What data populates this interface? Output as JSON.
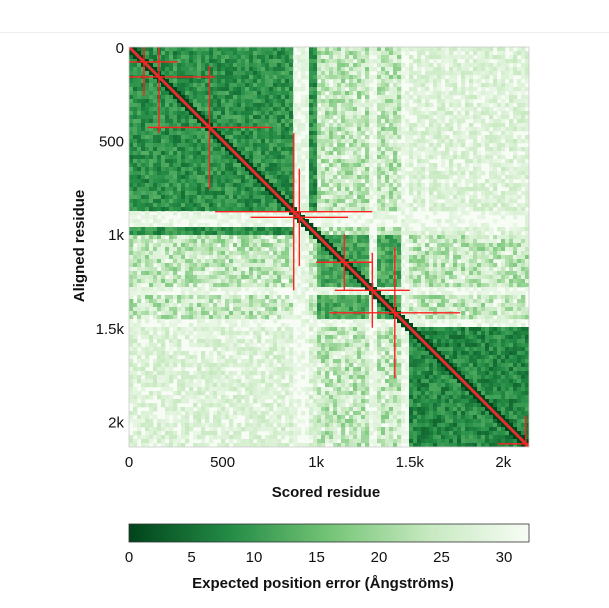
{
  "chart_data": {
    "type": "heatmap",
    "title": "",
    "xlabel": "Scored residue",
    "ylabel": "Aligned residue",
    "x_range": [
      0,
      2137
    ],
    "y_range": [
      0,
      2137
    ],
    "x_ticks": [
      {
        "value": 0,
        "label": "0"
      },
      {
        "value": 500,
        "label": "500"
      },
      {
        "value": 1000,
        "label": "1k"
      },
      {
        "value": 1500,
        "label": "1.5k"
      },
      {
        "value": 2000,
        "label": "2k"
      }
    ],
    "y_ticks": [
      {
        "value": 0,
        "label": "0"
      },
      {
        "value": 500,
        "label": "500"
      },
      {
        "value": 1000,
        "label": "1k"
      },
      {
        "value": 1500,
        "label": "1.5k"
      },
      {
        "value": 2000,
        "label": "2k"
      }
    ],
    "colorscale": {
      "title": "Expected position error (Ångströms)",
      "min": 0,
      "max": 32,
      "low_color": "#00441b",
      "mid_color": "#74c476",
      "high_color": "#f7fcf5",
      "ticks": [
        {
          "value": 0,
          "label": "0"
        },
        {
          "value": 5,
          "label": "5"
        },
        {
          "value": 10,
          "label": "10"
        },
        {
          "value": 15,
          "label": "15"
        },
        {
          "value": 20,
          "label": "20"
        },
        {
          "value": 25,
          "label": "25"
        },
        {
          "value": 30,
          "label": "30"
        }
      ]
    },
    "confident_blocks": [
      {
        "start": 0,
        "end": 1000,
        "error": 5
      },
      {
        "start": 1000,
        "end": 1500,
        "error": 8
      },
      {
        "start": 1500,
        "end": 2137,
        "error": 4
      }
    ],
    "low_confidence_bands": [
      {
        "start": 880,
        "end": 960
      },
      {
        "start": 1290,
        "end": 1330
      },
      {
        "start": 1450,
        "end": 1500
      }
    ],
    "diagonal_color": "#e03030",
    "crosshair_color": "#ff2020",
    "crosshair_markers": [
      {
        "residue": 80,
        "extent": 180
      },
      {
        "residue": 160,
        "extent": 300
      },
      {
        "residue": 430,
        "extent": 330
      },
      {
        "residue": 880,
        "extent": 420
      },
      {
        "residue": 910,
        "extent": 260
      },
      {
        "residue": 1150,
        "extent": 150
      },
      {
        "residue": 1300,
        "extent": 200
      },
      {
        "residue": 1420,
        "extent": 350
      },
      {
        "residue": 2120,
        "extent": 150
      }
    ]
  }
}
